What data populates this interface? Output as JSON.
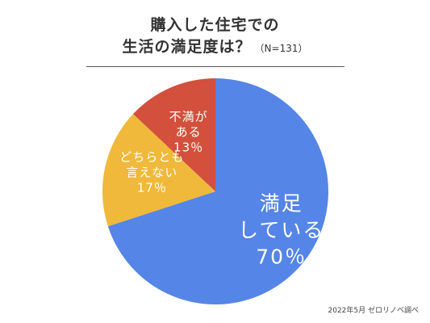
{
  "title": {
    "line1": "購入した住宅での",
    "line2": "生活の満足度は？",
    "sample": "（N=131）"
  },
  "source": "2022年5月 ゼロリノベ調べ",
  "chart_data": {
    "type": "pie",
    "slices": [
      {
        "label_lines": [
          "満足",
          "している"
        ],
        "percent_label": "70％",
        "value": 70,
        "color": "#5585e6"
      },
      {
        "label_lines": [
          "どちらとも",
          "言えない"
        ],
        "percent_label": "17％",
        "value": 17,
        "color": "#f0b93b"
      },
      {
        "label_lines": [
          "不満が",
          "ある"
        ],
        "percent_label": "13％",
        "value": 13,
        "color": "#d2503c"
      }
    ],
    "legend": "none",
    "start": "top",
    "direction": "clockwise"
  }
}
